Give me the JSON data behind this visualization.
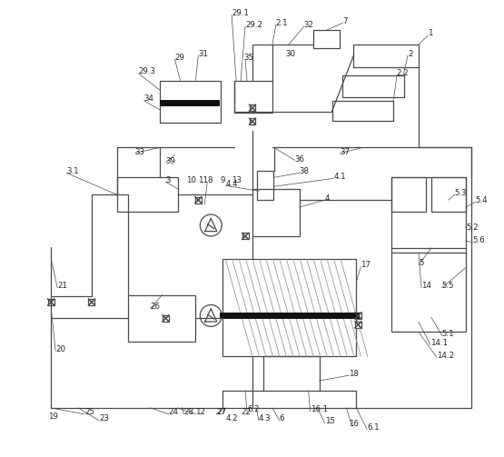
{
  "bg_color": "#ffffff",
  "line_color": "#4a4a4a",
  "fig_width": 5.55,
  "fig_height": 5.03,
  "dpi": 100
}
